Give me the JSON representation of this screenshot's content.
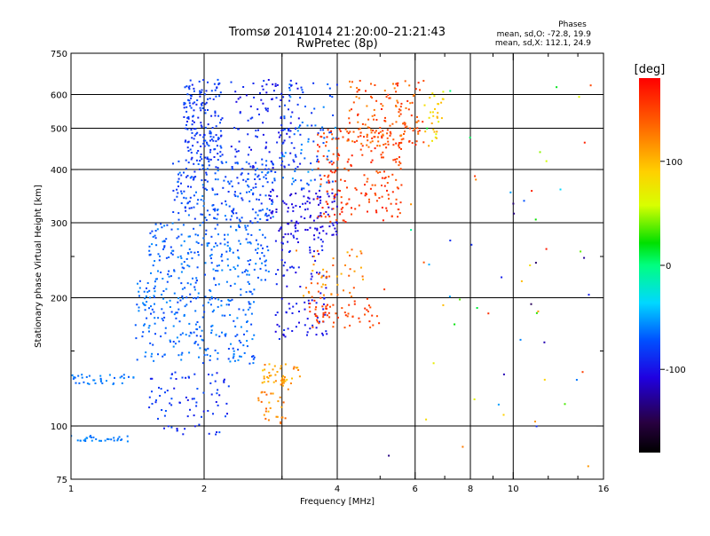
{
  "chart_data": {
    "type": "scatter",
    "title": "Tromsø 20141014 21:20:00–21:21:43",
    "subtitle": "RwPretec (8p)",
    "stats": {
      "heading": "Phases",
      "line_o": "mean, sd,O: -72.8, 19.9",
      "line_x": "mean, sd,X: 112.1, 24.9"
    },
    "xlabel": "Frequency [MHz]",
    "ylabel": "Stationary phase Virtual Height [km]",
    "x_scale": "log",
    "y_scale": "log",
    "xlim": [
      1,
      16
    ],
    "ylim": [
      75,
      750
    ],
    "x_ticks": [
      {
        "v": 1,
        "label": "1"
      },
      {
        "v": 2,
        "label": "2"
      },
      {
        "v": 4,
        "label": "4"
      },
      {
        "v": 6,
        "label": "6"
      },
      {
        "v": 8,
        "label": "8"
      },
      {
        "v": 10,
        "label": "10"
      },
      {
        "v": 16,
        "label": "16"
      }
    ],
    "x_minor_ticks": [
      3,
      5,
      7,
      9,
      12,
      14
    ],
    "x_grid": [
      2,
      3,
      4,
      6,
      8,
      10
    ],
    "y_ticks": [
      {
        "v": 75,
        "label": "75"
      },
      {
        "v": 100,
        "label": "100"
      },
      {
        "v": 200,
        "label": "200"
      },
      {
        "v": 300,
        "label": "300"
      },
      {
        "v": 400,
        "label": "400"
      },
      {
        "v": 500,
        "label": "500"
      },
      {
        "v": 600,
        "label": "600"
      },
      {
        "v": 750,
        "label": "750"
      }
    ],
    "y_grid": [
      100,
      200,
      300,
      400,
      500,
      600
    ],
    "colorbar": {
      "label": "[deg]",
      "range": [
        -180,
        180
      ],
      "ticks": [
        {
          "v": 100,
          "label": "100"
        },
        {
          "v": 0,
          "label": "0"
        },
        {
          "v": -100,
          "label": "-100"
        }
      ]
    },
    "point_clusters": [
      {
        "f": [
          1.0,
          1.35
        ],
        "h": [
          92,
          95
        ],
        "phase": [
          -65,
          -55
        ],
        "n": 30
      },
      {
        "f": [
          1.0,
          1.4
        ],
        "h": [
          125,
          132
        ],
        "phase": [
          -70,
          -55
        ],
        "n": 35
      },
      {
        "f": [
          1.5,
          2.3
        ],
        "h": [
          95,
          135
        ],
        "phase": [
          -100,
          -70
        ],
        "n": 80
      },
      {
        "f": [
          1.4,
          2.6
        ],
        "h": [
          140,
          220
        ],
        "phase": [
          -80,
          -55
        ],
        "n": 260
      },
      {
        "f": [
          1.5,
          2.8
        ],
        "h": [
          220,
          300
        ],
        "phase": [
          -80,
          -55
        ],
        "n": 200
      },
      {
        "f": [
          1.7,
          2.9
        ],
        "h": [
          300,
          420
        ],
        "phase": [
          -90,
          -60
        ],
        "n": 230
      },
      {
        "f": [
          1.8,
          2.2
        ],
        "h": [
          420,
          650
        ],
        "phase": [
          -95,
          -70
        ],
        "n": 170
      },
      {
        "f": [
          2.3,
          3.3
        ],
        "h": [
          400,
          650
        ],
        "phase": [
          -105,
          -80
        ],
        "n": 120
      },
      {
        "f": [
          2.8,
          4.0
        ],
        "h": [
          280,
          360
        ],
        "phase": [
          -115,
          -95
        ],
        "n": 110
      },
      {
        "f": [
          2.9,
          3.8
        ],
        "h": [
          160,
          280
        ],
        "phase": [
          -110,
          -85
        ],
        "n": 100
      },
      {
        "f": [
          3.0,
          4.0
        ],
        "h": [
          360,
          640
        ],
        "phase": [
          -90,
          -50
        ],
        "n": 90
      },
      {
        "f": [
          3.6,
          5.6
        ],
        "h": [
          300,
          500
        ],
        "phase": [
          140,
          170
        ],
        "n": 200
      },
      {
        "f": [
          4.2,
          6.3
        ],
        "h": [
          450,
          650
        ],
        "phase": [
          120,
          165
        ],
        "n": 150
      },
      {
        "f": [
          3.4,
          5.0
        ],
        "h": [
          170,
          200
        ],
        "phase": [
          140,
          165
        ],
        "n": 60
      },
      {
        "f": [
          3.2,
          4.6
        ],
        "h": [
          200,
          260
        ],
        "phase": [
          100,
          150
        ],
        "n": 50
      },
      {
        "f": [
          2.7,
          3.3
        ],
        "h": [
          125,
          140
        ],
        "phase": [
          90,
          130
        ],
        "n": 45
      },
      {
        "f": [
          2.6,
          3.1
        ],
        "h": [
          100,
          125
        ],
        "phase": [
          100,
          140
        ],
        "n": 30
      },
      {
        "f": [
          6.3,
          7.0
        ],
        "h": [
          450,
          650
        ],
        "phase": [
          60,
          110
        ],
        "n": 30
      },
      {
        "f": [
          5.0,
          15.0
        ],
        "h": [
          80,
          650
        ],
        "phase": [
          -150,
          170
        ],
        "n": 60
      }
    ]
  }
}
